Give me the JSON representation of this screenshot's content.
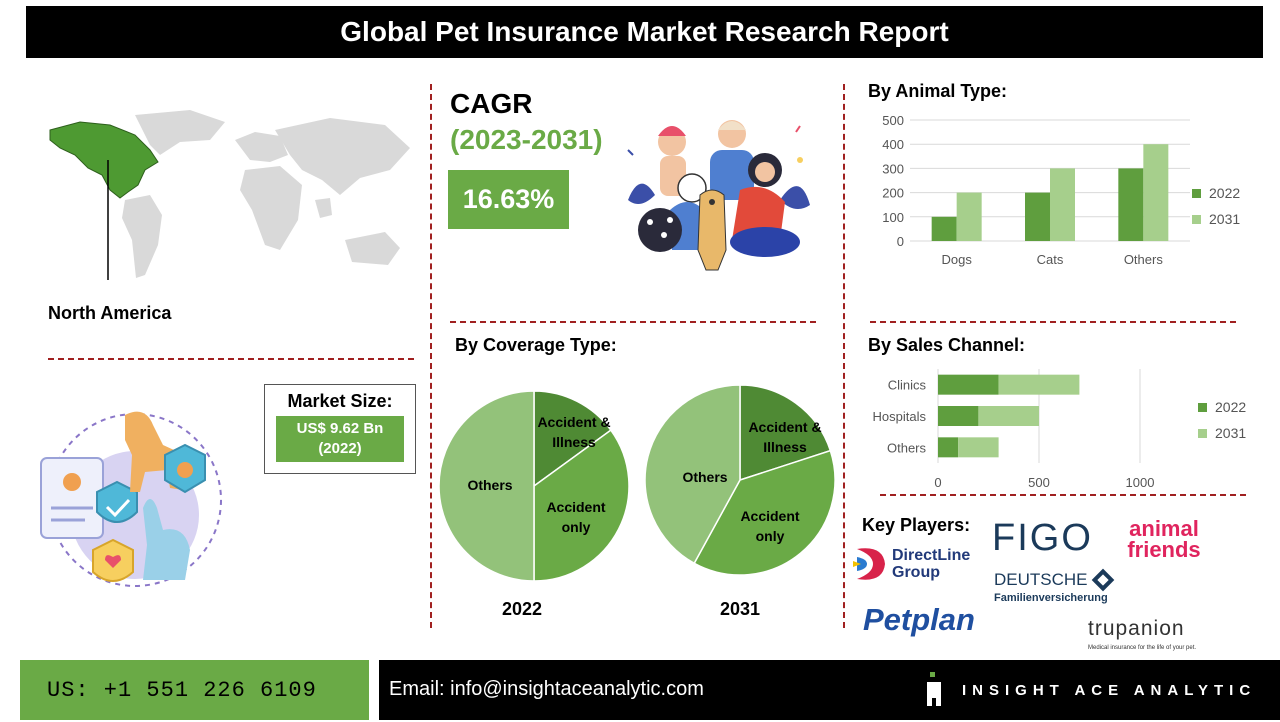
{
  "title": "Global Pet Insurance Market Research Report",
  "region": {
    "label": "North America"
  },
  "market_size": {
    "label": "Market Size:",
    "value": "US$ 9.62 Bn",
    "year": "(2022)"
  },
  "cagr": {
    "label": "CAGR",
    "period": "(2023-2031)",
    "value": "16.63%"
  },
  "sections": {
    "animal_type": "By Animal Type:",
    "coverage_type": "By Coverage Type:",
    "sales_channel": "By Sales Channel:",
    "key_players": "Key Players:"
  },
  "colors": {
    "series_2022": "#5f9e3e",
    "series_2031": "#a6cf8c",
    "pie_dark": "#4f8a34",
    "pie_mid": "#6aaa46",
    "pie_light": "#93c27a",
    "dash": "#a02020"
  },
  "chart_data": [
    {
      "type": "bar",
      "categories": [
        "Dogs",
        "Cats",
        "Others"
      ],
      "series": [
        {
          "name": "2022",
          "values": [
            100,
            200,
            300
          ]
        },
        {
          "name": "2031",
          "values": [
            200,
            300,
            400
          ]
        }
      ],
      "ylim": [
        0,
        500
      ],
      "yticks": [
        "0",
        "100",
        "200",
        "300",
        "400",
        "500"
      ],
      "grid": true,
      "legend": "right"
    },
    {
      "type": "pie",
      "caption": "2022",
      "labels": [
        "Accident & Illness",
        "Accident only",
        "Others"
      ],
      "values": [
        15,
        35,
        50
      ]
    },
    {
      "type": "pie",
      "caption": "2031",
      "labels": [
        "Accident & Illness",
        "Accident only",
        "Others"
      ],
      "values": [
        20,
        38,
        42
      ]
    },
    {
      "type": "bar",
      "orientation": "horizontal",
      "stacked": true,
      "categories": [
        "Clinics",
        "Hospitals",
        "Others"
      ],
      "series": [
        {
          "name": "2022",
          "values": [
            300,
            200,
            100
          ]
        },
        {
          "name": "2031",
          "values": [
            400,
            300,
            200
          ]
        }
      ],
      "xlim": [
        0,
        1000
      ],
      "xticks": [
        "0",
        "500",
        "1000"
      ],
      "grid": true,
      "legend": "right"
    }
  ],
  "pie_labels": {
    "accident_illness": [
      "Accident &",
      "Illness"
    ],
    "accident_only": [
      "Accident",
      "only"
    ],
    "others": "Others"
  },
  "key_players": {
    "figo": "FIGO",
    "animal_friends": [
      "animal",
      "friends"
    ],
    "directline": [
      "DirectLine",
      "Group"
    ],
    "deutsche": [
      "DEUTSCHE",
      "Familienversicherung"
    ],
    "petplan": "Petplan",
    "trupanion": "trupanion",
    "trupanion_tagline": "Medical insurance for the life of your pet."
  },
  "footer": {
    "phone": "US: +1 551 226 6109",
    "email": "Email: info@insightaceanalytic.com",
    "brand": "INSIGHT ACE ANALYTIC"
  }
}
